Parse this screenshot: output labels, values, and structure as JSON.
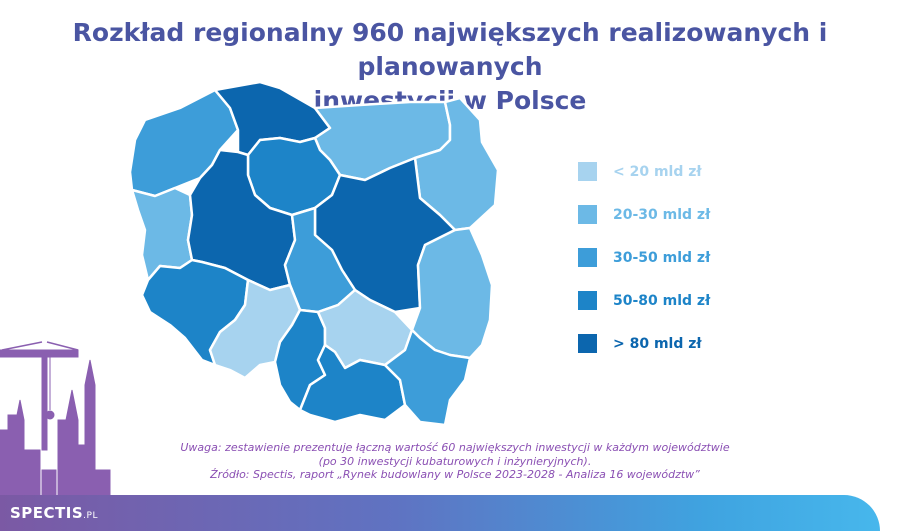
{
  "title": {
    "line1": "Rozkład regionalny 960 największych realizowanych i planowanych",
    "line2": "inwestycji w Polsce"
  },
  "legend": [
    {
      "label": "< 20 mld zł",
      "color": "#a7d3ef"
    },
    {
      "label": "20-30 mld zł",
      "color": "#6cb9e6"
    },
    {
      "label": "30-50 mld zł",
      "color": "#3d9dd9"
    },
    {
      "label": "50-80 mld zł",
      "color": "#1d84c8"
    },
    {
      "label": "> 80 mld zł",
      "color": "#0c66ae"
    }
  ],
  "note": {
    "line1": "Uwaga: zestawienie prezentuje łączną wartość 60 największych inwestycji w każdym województwie",
    "line2": "(po 30 inwestycji kubaturowych i inżynieryjnych).",
    "line3": "Źródło: Spectis, raport „Rynek budowlany w Polsce 2023-2028 - Analiza 16 województw”"
  },
  "logo": {
    "name": "SPECTIS",
    "suffix": ".PL"
  },
  "colors": {
    "title": "#4a55a2",
    "note": "#8a4fb3",
    "skyline": "#8a5fb0"
  }
}
